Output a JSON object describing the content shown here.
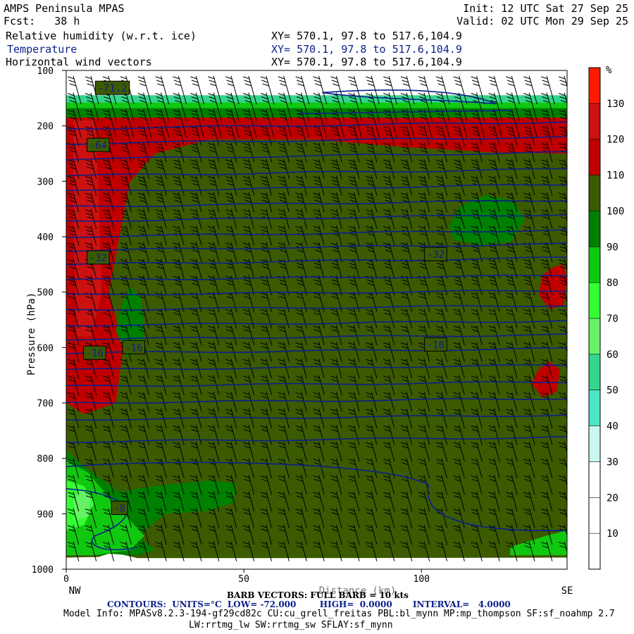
{
  "header": {
    "model": "AMPS Peninsula MPAS",
    "forecast": "Fcst:   38 h",
    "init": "Init: 12 UTC Sat 27 Sep 25",
    "valid": "Valid: 02 UTC Mon 29 Sep 25",
    "fields": [
      {
        "label": "Relative humidity (w.r.t. ice)",
        "xy": "XY= 570.1, 97.8 to 517.6,104.9"
      },
      {
        "label": "Temperature",
        "xy": "XY= 570.1, 97.8 to 517.6,104.9"
      },
      {
        "label": "Horizontal wind vectors",
        "xy": "XY= 570.1, 97.8 to 517.6,104.9"
      }
    ]
  },
  "chart_data": {
    "type": "heatmap",
    "xlabel": "Distance (km)",
    "ylabel": "Pressure (hPa)",
    "xlim": [
      0,
      141
    ],
    "ylim": [
      1000,
      100
    ],
    "x_ticks": [
      0,
      50,
      100
    ],
    "y_ticks": [
      100,
      200,
      300,
      400,
      500,
      600,
      700,
      800,
      900,
      1000
    ],
    "left_end_label": "NW",
    "right_end_label": "SE",
    "colorbar": {
      "unit": "%",
      "ticks": [
        10,
        20,
        30,
        40,
        50,
        60,
        70,
        80,
        90,
        100,
        110,
        120,
        130
      ],
      "bands": [
        {
          "from": 0,
          "to": 10,
          "color": "#ffffff"
        },
        {
          "from": 10,
          "to": 20,
          "color": "#ffffff"
        },
        {
          "from": 20,
          "to": 30,
          "color": "#ffffff"
        },
        {
          "from": 30,
          "to": 40,
          "color": "#c8f7ee"
        },
        {
          "from": 40,
          "to": 50,
          "color": "#4fe6c6"
        },
        {
          "from": 50,
          "to": 60,
          "color": "#33d68c"
        },
        {
          "from": 60,
          "to": 70,
          "color": "#66f266"
        },
        {
          "from": 70,
          "to": 80,
          "color": "#33ff33"
        },
        {
          "from": 80,
          "to": 90,
          "color": "#11c811"
        },
        {
          "from": 90,
          "to": 100,
          "color": "#008000"
        },
        {
          "from": 100,
          "to": 110,
          "color": "#3c5a00"
        },
        {
          "from": 110,
          "to": 120,
          "color": "#c00000"
        },
        {
          "from": 120,
          "to": 130,
          "color": "#cc1111"
        },
        {
          "from": 130,
          "to": 140,
          "color": "#ff1a00"
        }
      ]
    },
    "rh_regions": [
      {
        "color": "#ffffff",
        "points": [
          [
            0,
            100
          ],
          [
            141,
            100
          ],
          [
            141,
            145
          ],
          [
            0,
            145
          ]
        ]
      },
      {
        "color": "#33d68c",
        "points": [
          [
            0,
            145
          ],
          [
            141,
            145
          ],
          [
            141,
            165
          ],
          [
            0,
            165
          ]
        ]
      },
      {
        "color": "#11c811",
        "points": [
          [
            0,
            158
          ],
          [
            141,
            158
          ],
          [
            141,
            175
          ],
          [
            0,
            175
          ]
        ]
      },
      {
        "color": "#008000",
        "points": [
          [
            0,
            168
          ],
          [
            141,
            168
          ],
          [
            141,
            185
          ],
          [
            0,
            185
          ]
        ]
      },
      {
        "color": "#c00000",
        "points": [
          [
            0,
            185
          ],
          [
            141,
            185
          ],
          [
            141,
            250
          ],
          [
            120,
            248
          ],
          [
            95,
            238
          ],
          [
            70,
            225
          ],
          [
            40,
            225
          ],
          [
            25,
            250
          ],
          [
            18,
            300
          ],
          [
            12,
            500
          ],
          [
            16,
            600
          ],
          [
            14,
            700
          ],
          [
            5,
            720
          ],
          [
            0,
            700
          ]
        ]
      },
      {
        "color": "#cc1111",
        "points": [
          [
            2,
            190
          ],
          [
            8,
            190
          ],
          [
            9,
            300
          ],
          [
            10,
            500
          ],
          [
            7,
            580
          ],
          [
            3,
            580
          ],
          [
            2,
            400
          ]
        ]
      },
      {
        "color": "#c00000",
        "points": [
          [
            137,
            455
          ],
          [
            140,
            450
          ],
          [
            141,
            480
          ],
          [
            140,
            525
          ],
          [
            136,
            530
          ],
          [
            133,
            505
          ],
          [
            134,
            470
          ]
        ]
      },
      {
        "color": "#c00000",
        "points": [
          [
            133,
            640
          ],
          [
            136,
            625
          ],
          [
            139,
            640
          ],
          [
            138,
            680
          ],
          [
            134,
            690
          ],
          [
            131,
            665
          ]
        ]
      },
      {
        "color": "#008000",
        "points": [
          [
            108,
            380
          ],
          [
            111,
            345
          ],
          [
            118,
            325
          ],
          [
            126,
            335
          ],
          [
            129,
            370
          ],
          [
            125,
            410
          ],
          [
            116,
            415
          ],
          [
            109,
            405
          ]
        ]
      },
      {
        "color": "#008000",
        "points": [
          [
            16,
            515
          ],
          [
            18,
            490
          ],
          [
            21,
            510
          ],
          [
            22,
            560
          ],
          [
            21,
            610
          ],
          [
            17,
            615
          ],
          [
            14,
            570
          ]
        ]
      },
      {
        "color": "#008000",
        "points": [
          [
            0,
            785
          ],
          [
            5,
            815
          ],
          [
            15,
            860
          ],
          [
            25,
            850
          ],
          [
            40,
            840
          ],
          [
            48,
            845
          ],
          [
            47,
            880
          ],
          [
            40,
            895
          ],
          [
            28,
            900
          ],
          [
            20,
            940
          ],
          [
            25,
            965
          ],
          [
            20,
            975
          ],
          [
            0,
            975
          ]
        ]
      },
      {
        "color": "#11c811",
        "points": [
          [
            0,
            805
          ],
          [
            6,
            825
          ],
          [
            12,
            870
          ],
          [
            17,
            905
          ],
          [
            22,
            940
          ],
          [
            18,
            965
          ],
          [
            8,
            975
          ],
          [
            0,
            975
          ]
        ]
      },
      {
        "color": "#33ff33",
        "points": [
          [
            0,
            840
          ],
          [
            5,
            850
          ],
          [
            8,
            880
          ],
          [
            5,
            920
          ],
          [
            0,
            930
          ]
        ]
      },
      {
        "color": "#66f266",
        "points": [
          [
            4,
            855
          ],
          [
            7,
            870
          ],
          [
            6,
            905
          ],
          [
            3,
            910
          ],
          [
            2,
            880
          ]
        ]
      },
      {
        "color": "#11c811",
        "points": [
          [
            125,
            960
          ],
          [
            135,
            940
          ],
          [
            141,
            930
          ],
          [
            141,
            975
          ],
          [
            125,
            975
          ]
        ]
      },
      {
        "color": "#ffffff",
        "points": [
          [
            0,
            1000
          ],
          [
            0,
            979
          ],
          [
            9,
            978
          ],
          [
            12,
            972
          ],
          [
            16,
            974
          ],
          [
            20,
            980
          ],
          [
            60,
            980
          ],
          [
            141,
            979
          ],
          [
            141,
            1000
          ]
        ]
      }
    ],
    "temperature_contours": {
      "units": "°C",
      "interval": 4,
      "low": -72,
      "high": 0,
      "labels": [
        {
          "value": "-71.2",
          "x": 13,
          "p": 132
        },
        {
          "value": "-64",
          "x": 9,
          "p": 235
        },
        {
          "value": "-32",
          "x": 9,
          "p": 438
        },
        {
          "value": "-32",
          "x": 104,
          "p": 432
        },
        {
          "value": "-16",
          "x": 8,
          "p": 610
        },
        {
          "value": "-16",
          "x": 19,
          "p": 600
        },
        {
          "value": "-16",
          "x": 104,
          "p": 595
        },
        {
          "value": "-8",
          "x": 15,
          "p": 890
        }
      ]
    },
    "barb_note": "BARB VECTORS: FULL BARB = 10 kts",
    "contour_note": {
      "prefix": "CONTOURS:",
      "units": "UNITS=°C",
      "low": "LOW= -72.000",
      "high": "HIGH=  0.0000",
      "interval": "INTERVAL=   4.0000"
    }
  },
  "footer": {
    "line1": "Model Info: MPASv8.2.3-194-gf29cd82c CU:cu_grell_freitas PBL:bl_mynn MP:mp_thompson SF:sf_noahmp 2.7",
    "line2": "LW:rrtmg_lw SW:rrtmg_sw SFLAY:sf_mynn"
  },
  "colors": {
    "contour": "#0b1f8a",
    "background_rh": "#3c5a00"
  }
}
